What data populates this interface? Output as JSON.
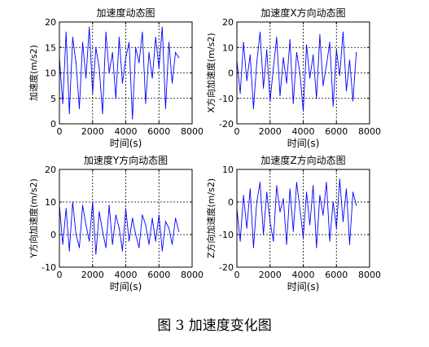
{
  "figure_caption": "图 3  加速度变化图",
  "chart_data": [
    {
      "type": "line",
      "title": "加速度动态图",
      "xlabel": "时间(s)",
      "ylabel": "加速度(m/s2)",
      "xlim": [
        0,
        8000
      ],
      "ylim": [
        0,
        20
      ],
      "xticks": [
        0,
        2000,
        4000,
        6000,
        8000
      ],
      "yticks": [
        0,
        5,
        10,
        15,
        20
      ],
      "grid": true,
      "series_color": "#0000ff",
      "x": [
        0,
        200,
        400,
        600,
        800,
        1000,
        1200,
        1400,
        1600,
        1800,
        2000,
        2200,
        2400,
        2600,
        2800,
        3000,
        3200,
        3400,
        3600,
        3800,
        4000,
        4200,
        4400,
        4600,
        4800,
        5000,
        5200,
        5400,
        5600,
        5800,
        6000,
        6200,
        6400,
        6600,
        6800,
        7000,
        7200
      ],
      "values": [
        13,
        4,
        18,
        2,
        17,
        12,
        3,
        16,
        9,
        19,
        6,
        15,
        11,
        2,
        18,
        10,
        14,
        5,
        17,
        8,
        13,
        16,
        1,
        15,
        12,
        18,
        4,
        14,
        9,
        17,
        11,
        19,
        3,
        16,
        8,
        14,
        13
      ]
    },
    {
      "type": "line",
      "title": "加速度X方向动态图",
      "xlabel": "时间(s)",
      "ylabel": "X方向加速度(m/s2)",
      "xlim": [
        0,
        8000
      ],
      "ylim": [
        -20,
        20
      ],
      "xticks": [
        0,
        2000,
        4000,
        6000,
        8000
      ],
      "yticks": [
        -20,
        -10,
        0,
        10,
        20
      ],
      "grid": true,
      "series_color": "#0000ff",
      "x": [
        0,
        200,
        400,
        600,
        800,
        1000,
        1200,
        1400,
        1600,
        1800,
        2000,
        2200,
        2400,
        2600,
        2800,
        3000,
        3200,
        3400,
        3600,
        3800,
        4000,
        4200,
        4400,
        4600,
        4800,
        5000,
        5200,
        5400,
        5600,
        5800,
        6000,
        6200,
        6400,
        6600,
        6800,
        7000,
        7200
      ],
      "values": [
        5,
        -8,
        12,
        -3,
        7,
        -14,
        4,
        16,
        -6,
        9,
        -11,
        2,
        14,
        -9,
        6,
        -4,
        13,
        -12,
        8,
        0,
        -15,
        11,
        -2,
        7,
        -10,
        15,
        -5,
        3,
        12,
        -13,
        9,
        -1,
        16,
        -7,
        5,
        -11,
        8
      ]
    },
    {
      "type": "line",
      "title": "加速度Y方向动态图",
      "xlabel": "时间(s)",
      "ylabel": "Y方向加速度(m/s2)",
      "xlim": [
        0,
        8000
      ],
      "ylim": [
        -10,
        20
      ],
      "xticks": [
        0,
        2000,
        4000,
        6000,
        8000
      ],
      "yticks": [
        -10,
        0,
        10,
        20
      ],
      "grid": true,
      "series_color": "#0000ff",
      "x": [
        0,
        200,
        400,
        600,
        800,
        1000,
        1200,
        1400,
        1600,
        1800,
        2000,
        2200,
        2400,
        2600,
        2800,
        3000,
        3200,
        3400,
        3600,
        3800,
        4000,
        4200,
        4400,
        4600,
        4800,
        5000,
        5200,
        5400,
        5600,
        5800,
        6000,
        6200,
        6400,
        6600,
        6800,
        7000,
        7200
      ],
      "values": [
        9,
        -3,
        8,
        -5,
        10,
        0,
        -4,
        9,
        3,
        -2,
        10,
        -6,
        7,
        1,
        -4,
        9,
        -3,
        6,
        2,
        -5,
        8,
        -2,
        5,
        0,
        -4,
        6,
        3,
        -3,
        5,
        -2,
        6,
        -5,
        4,
        2,
        -3,
        5,
        1
      ]
    },
    {
      "type": "line",
      "title": "加速度Z方向动态图",
      "xlabel": "时间(s)",
      "ylabel": "Z方向加速度(m/s2)",
      "xlim": [
        0,
        8000
      ],
      "ylim": [
        -20,
        10
      ],
      "xticks": [
        0,
        2000,
        4000,
        6000,
        8000
      ],
      "yticks": [
        -20,
        -10,
        0,
        10
      ],
      "grid": true,
      "series_color": "#0000ff",
      "x": [
        0,
        200,
        400,
        600,
        800,
        1000,
        1200,
        1400,
        1600,
        1800,
        2000,
        2200,
        2400,
        2600,
        2800,
        3000,
        3200,
        3400,
        3600,
        3800,
        4000,
        4200,
        4400,
        4600,
        4800,
        5000,
        5200,
        5400,
        5600,
        5800,
        6000,
        6200,
        6400,
        6600,
        6800,
        7000,
        7200
      ],
      "values": [
        -2,
        -12,
        2,
        -8,
        4,
        -14,
        0,
        6,
        -10,
        3,
        -6,
        -12,
        5,
        -3,
        1,
        -13,
        4,
        -9,
        6,
        -2,
        -11,
        3,
        -7,
        5,
        -14,
        2,
        -4,
        6,
        -12,
        0,
        -8,
        7,
        -6,
        4,
        -13,
        3,
        -1
      ]
    }
  ]
}
